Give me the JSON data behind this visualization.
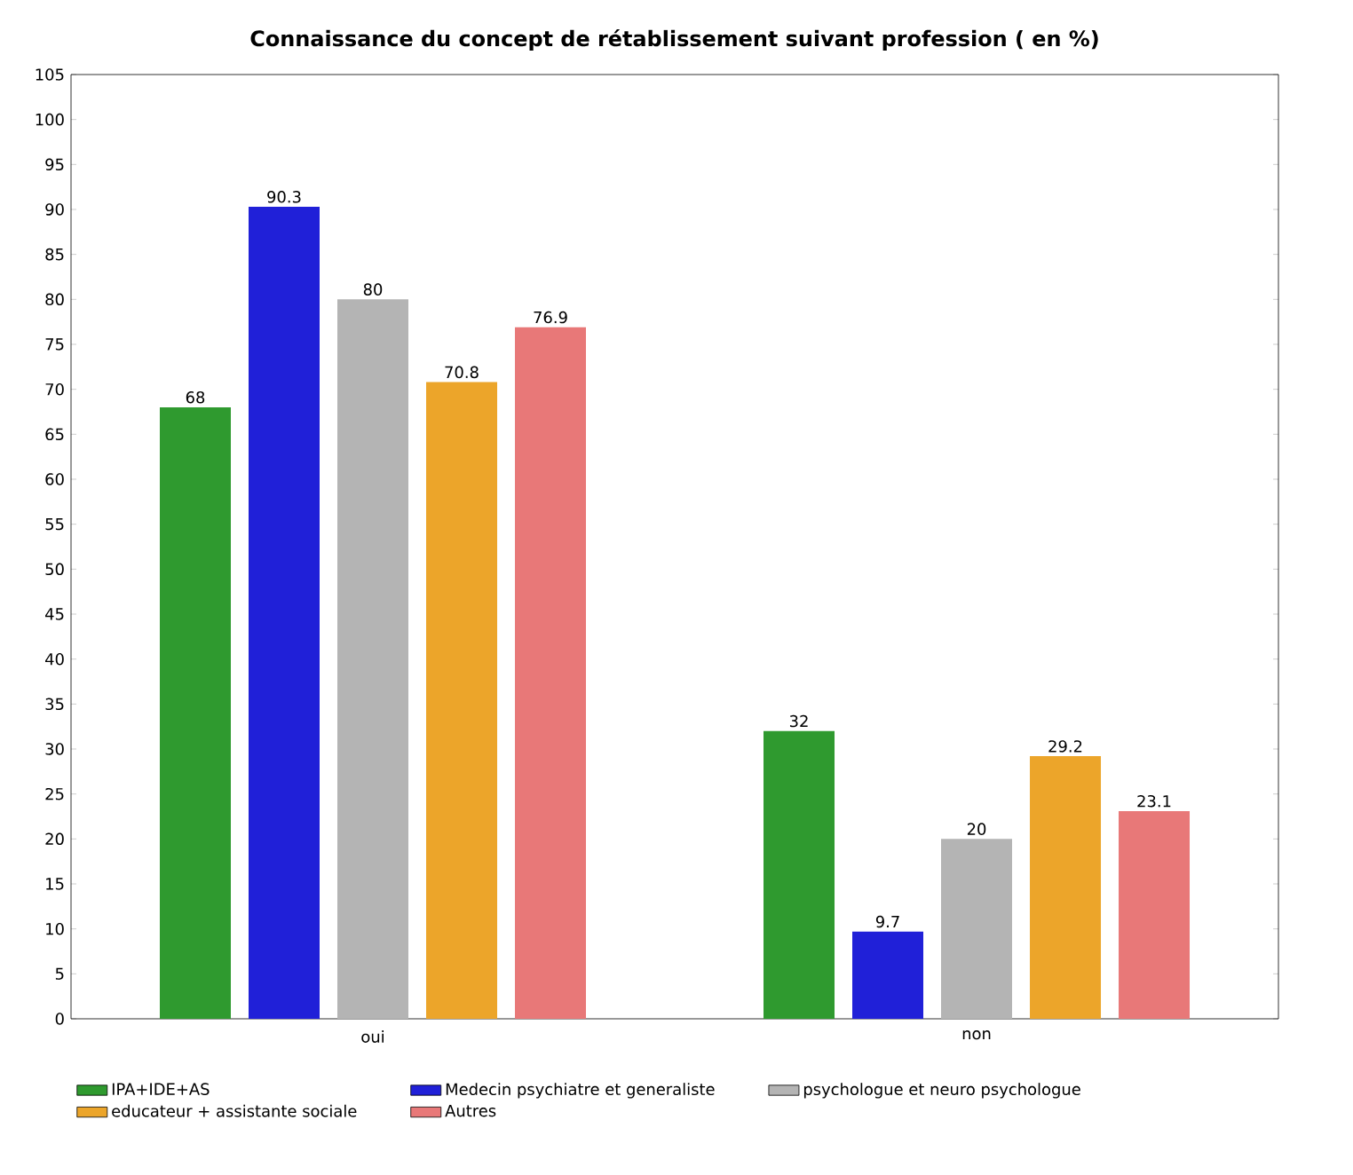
{
  "chart_data": {
    "type": "bar",
    "title": "Connaissance du concept de rétablissement suivant profession ( en %)",
    "categories": [
      "oui",
      "non"
    ],
    "series": [
      {
        "name": "IPA+IDE+AS",
        "color": "#2f9a2f",
        "values": [
          68,
          32
        ]
      },
      {
        "name": "Medecin psychiatre et generaliste",
        "color": "#2020d8",
        "values": [
          90.3,
          9.7
        ]
      },
      {
        "name": "psychologue et neuro psychologue",
        "color": "#b4b4b4",
        "values": [
          80,
          20
        ]
      },
      {
        "name": "educateur + assistante sociale",
        "color": "#eca52a",
        "values": [
          70.8,
          29.2
        ]
      },
      {
        "name": "Autres",
        "color": "#e87878",
        "values": [
          76.9,
          23.1
        ]
      }
    ],
    "ylim": [
      0,
      105
    ],
    "yticks": [
      0,
      5,
      10,
      15,
      20,
      25,
      30,
      35,
      40,
      45,
      50,
      55,
      60,
      65,
      70,
      75,
      80,
      85,
      90,
      95,
      100,
      105
    ],
    "data_labels": true,
    "grid": false,
    "legend": "bottom"
  }
}
